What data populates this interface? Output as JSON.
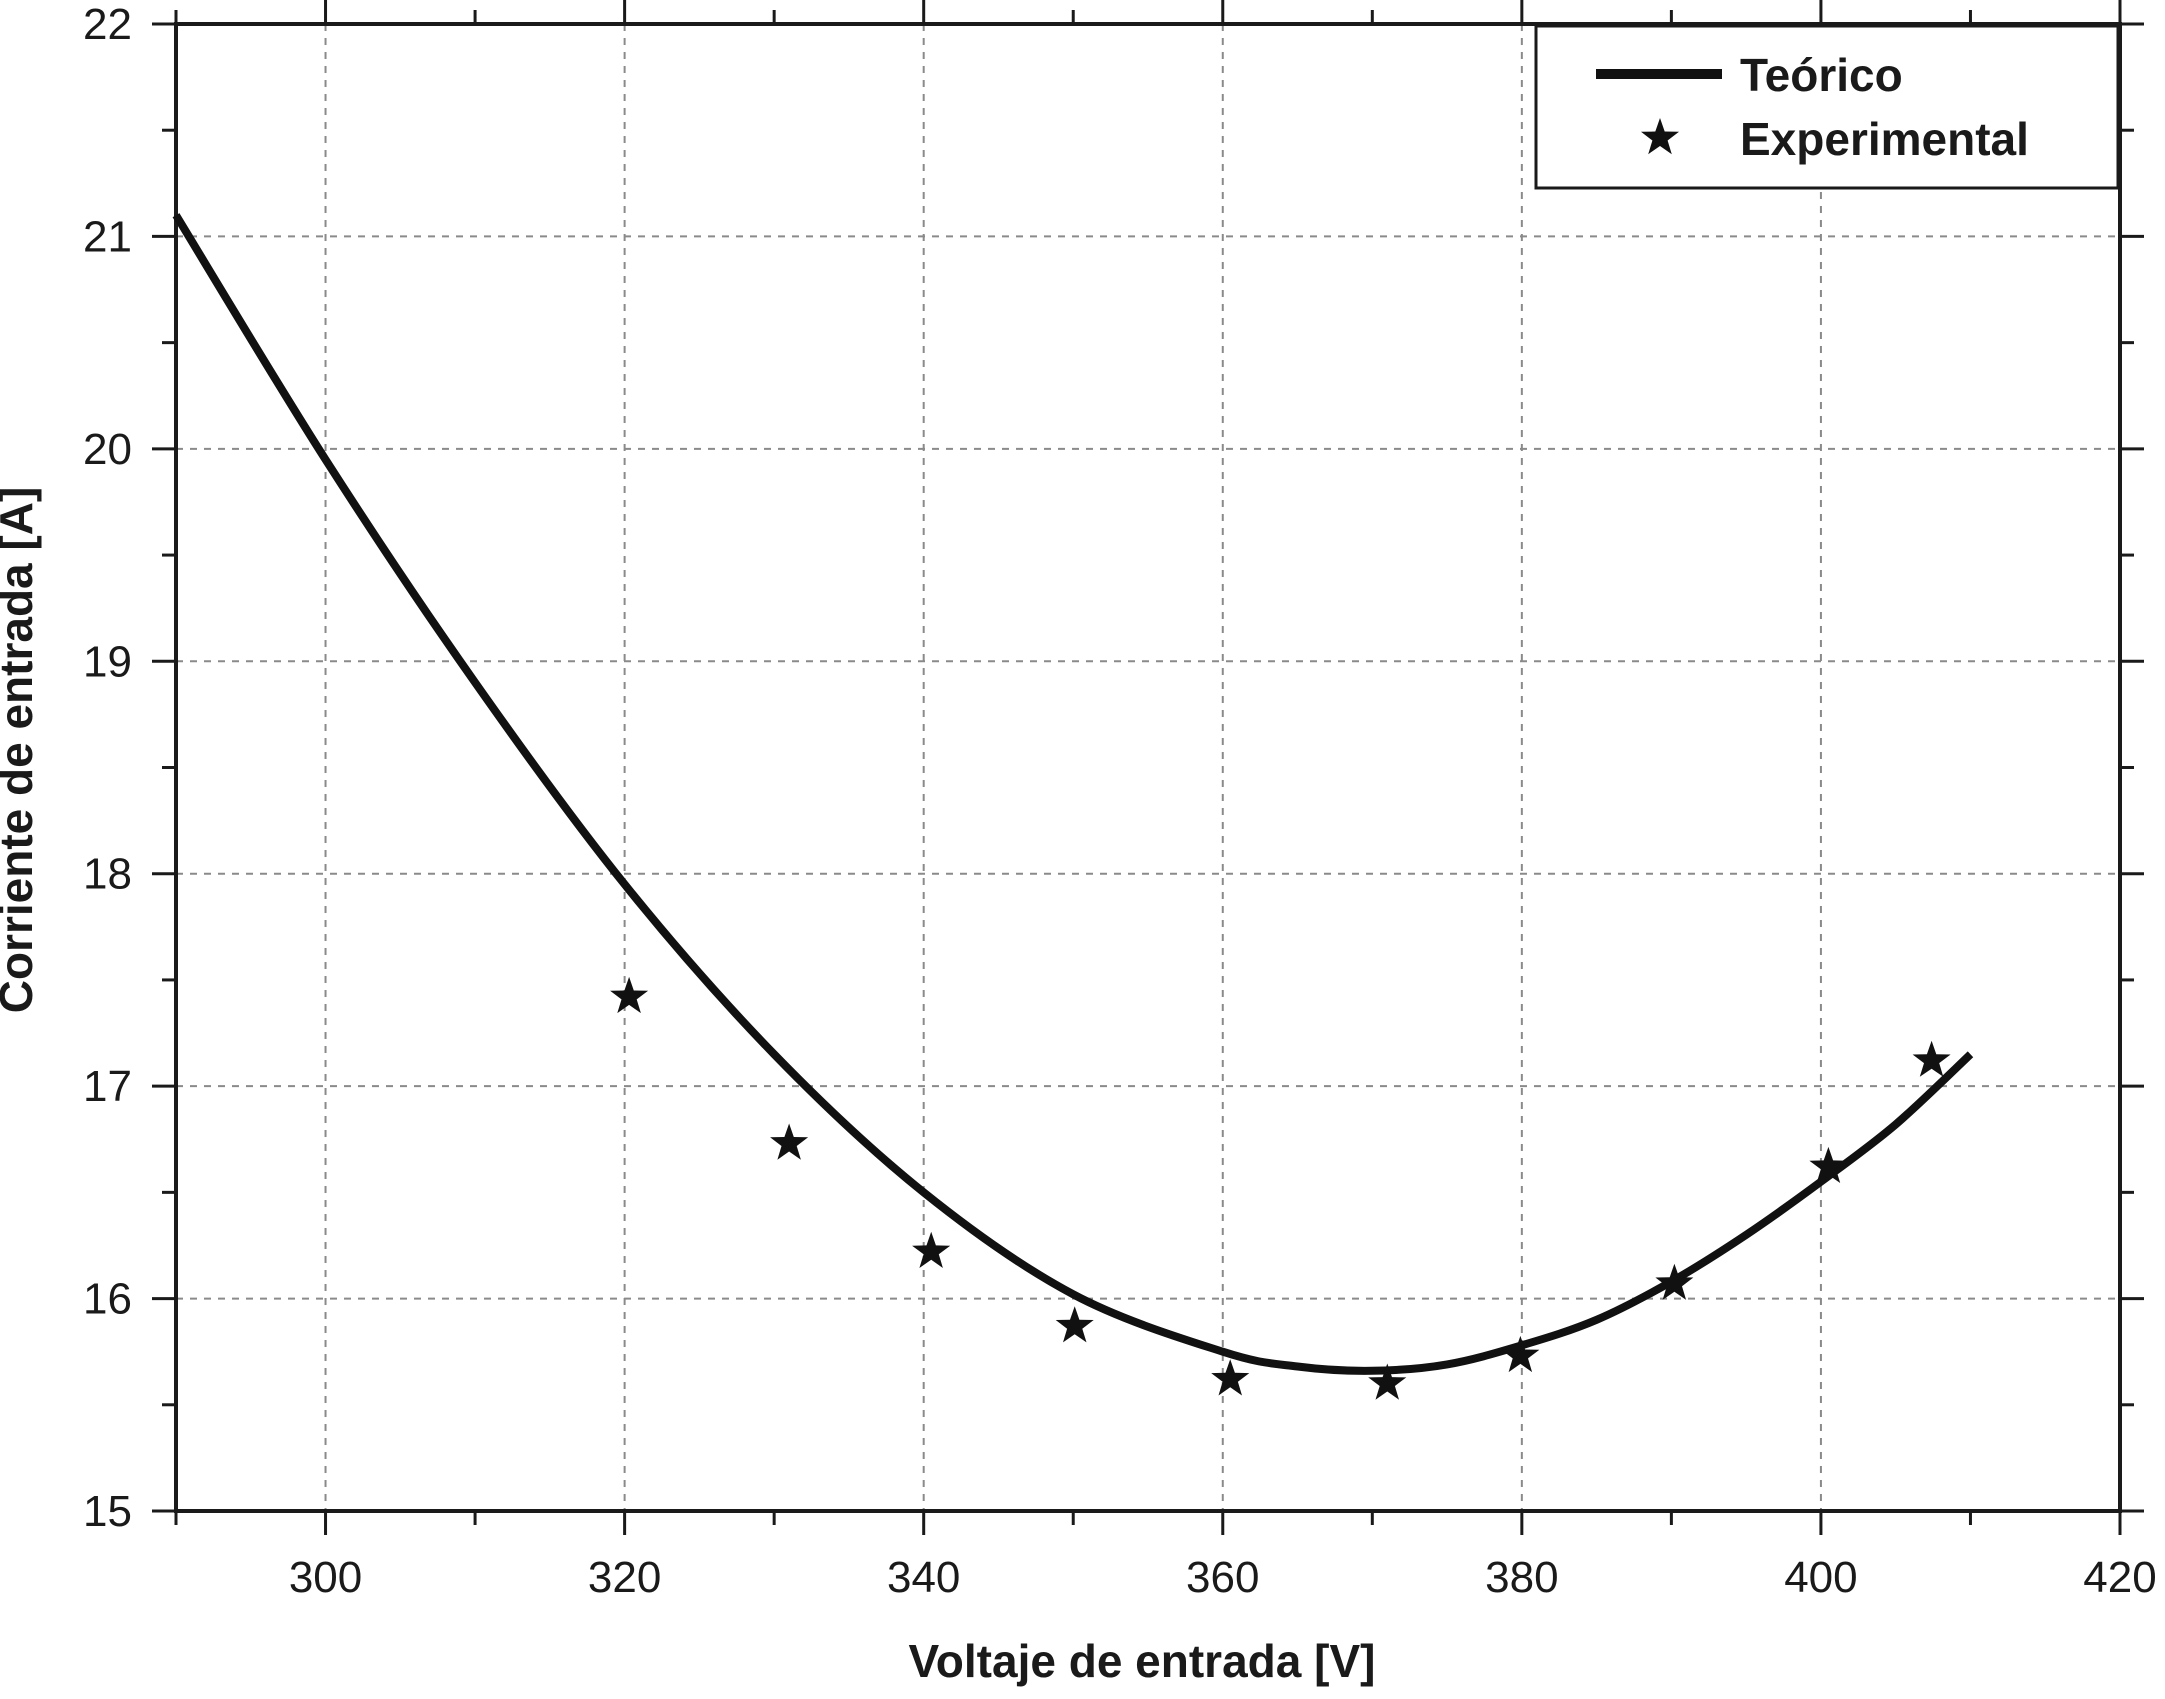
{
  "chart_data": {
    "type": "line",
    "xlabel": "Voltaje de entrada [V]",
    "ylabel": "Corriente de entrada [A]",
    "xlim": [
      290,
      420
    ],
    "ylim": [
      15,
      22
    ],
    "x_ticks": [
      300,
      320,
      340,
      360,
      380,
      400,
      420
    ],
    "y_ticks": [
      15,
      16,
      17,
      18,
      19,
      20,
      21,
      22
    ],
    "grid": true,
    "legend_position": "top-right",
    "colors": {
      "line": "#111111",
      "marker": "#111111",
      "axis": "#1a1a1a",
      "grid": "#8a8a8a"
    },
    "series": [
      {
        "name": "Teórico",
        "style": "line",
        "x": [
          290,
          300,
          310,
          320,
          330,
          340,
          350,
          360,
          365,
          370,
          375,
          380,
          385,
          390,
          395,
          400,
          405,
          410
        ],
        "y": [
          21.1,
          19.95,
          18.9,
          17.95,
          17.15,
          16.5,
          16.02,
          15.75,
          15.68,
          15.66,
          15.69,
          15.78,
          15.9,
          16.08,
          16.3,
          16.55,
          16.82,
          17.15
        ]
      },
      {
        "name": "Experimental",
        "style": "star",
        "x": [
          320.3,
          331.0,
          340.5,
          350.1,
          360.5,
          371.0,
          379.9,
          390.2,
          400.5,
          407.4
        ],
        "y": [
          17.42,
          16.73,
          16.22,
          15.87,
          15.62,
          15.6,
          15.73,
          16.07,
          16.62,
          17.12
        ]
      }
    ]
  }
}
